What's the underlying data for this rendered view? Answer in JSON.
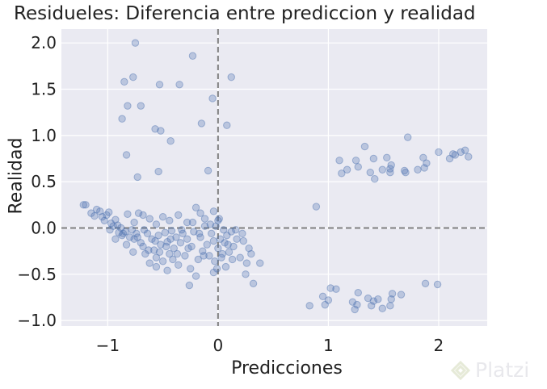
{
  "chart_data": {
    "type": "scatter",
    "title": "Residueles: Diferencia entre prediccion y realidad",
    "xlabel": "Predicciones",
    "ylabel": "Realidad",
    "xlim": [
      -1.42,
      2.44
    ],
    "ylim": [
      -1.06,
      2.15
    ],
    "x_ticks": [
      -1,
      0,
      1,
      2
    ],
    "x_tick_labels": [
      "−1",
      "0",
      "1",
      "2"
    ],
    "y_ticks": [
      -1.0,
      -0.5,
      0.0,
      0.5,
      1.0,
      1.5,
      2.0
    ],
    "y_tick_labels": [
      "−1.0",
      "−0.5",
      "0.0",
      "0.5",
      "1.0",
      "1.5",
      "2.0"
    ],
    "reference_lines": {
      "vertical_x": 0,
      "horizontal_y": 0,
      "style": "dashed"
    },
    "grid": true,
    "background": "#eaeaf2",
    "point_color": "#4c72b0",
    "point_alpha": 0.3,
    "points": [
      [
        -0.75,
        2.0
      ],
      [
        -0.23,
        1.86
      ],
      [
        -0.85,
        1.58
      ],
      [
        -0.77,
        1.63
      ],
      [
        -0.53,
        1.55
      ],
      [
        -0.35,
        1.55
      ],
      [
        0.12,
        1.63
      ],
      [
        -0.82,
        1.32
      ],
      [
        -0.7,
        1.32
      ],
      [
        -0.87,
        1.18
      ],
      [
        -0.57,
        1.07
      ],
      [
        -0.52,
        1.05
      ],
      [
        -0.15,
        1.13
      ],
      [
        0.08,
        1.11
      ],
      [
        -0.43,
        0.94
      ],
      [
        -0.83,
        0.79
      ],
      [
        -0.73,
        0.55
      ],
      [
        -0.54,
        0.61
      ],
      [
        -0.09,
        0.62
      ],
      [
        -0.05,
        1.4
      ],
      [
        0.89,
        0.23
      ],
      [
        1.1,
        0.73
      ],
      [
        1.17,
        0.63
      ],
      [
        1.12,
        0.59
      ],
      [
        1.25,
        0.73
      ],
      [
        1.27,
        0.66
      ],
      [
        1.33,
        0.88
      ],
      [
        1.38,
        0.6
      ],
      [
        1.41,
        0.75
      ],
      [
        1.42,
        0.53
      ],
      [
        1.49,
        0.63
      ],
      [
        1.53,
        0.76
      ],
      [
        1.56,
        0.6
      ],
      [
        1.56,
        0.64
      ],
      [
        1.57,
        0.68
      ],
      [
        1.69,
        0.62
      ],
      [
        1.72,
        0.98
      ],
      [
        1.7,
        0.6
      ],
      [
        1.81,
        0.63
      ],
      [
        1.86,
        0.76
      ],
      [
        1.87,
        0.65
      ],
      [
        1.89,
        0.7
      ],
      [
        2.0,
        0.82
      ],
      [
        2.1,
        0.75
      ],
      [
        2.13,
        0.8
      ],
      [
        2.15,
        0.79
      ],
      [
        2.2,
        0.82
      ],
      [
        2.24,
        0.84
      ],
      [
        2.27,
        0.77
      ],
      [
        0.83,
        -0.84
      ],
      [
        0.97,
        -0.83
      ],
      [
        1.0,
        -0.78
      ],
      [
        1.02,
        -0.65
      ],
      [
        1.07,
        -0.66
      ],
      [
        0.95,
        -0.74
      ],
      [
        1.22,
        -0.8
      ],
      [
        1.24,
        -0.88
      ],
      [
        1.26,
        -0.83
      ],
      [
        1.27,
        -0.7
      ],
      [
        1.36,
        -0.76
      ],
      [
        1.41,
        -0.79
      ],
      [
        1.39,
        -0.84
      ],
      [
        1.45,
        -0.77
      ],
      [
        1.49,
        -0.87
      ],
      [
        1.57,
        -0.77
      ],
      [
        1.56,
        -0.84
      ],
      [
        1.58,
        -0.71
      ],
      [
        1.66,
        -0.72
      ],
      [
        1.88,
        -0.6
      ],
      [
        1.99,
        -0.61
      ],
      [
        -1.22,
        0.25
      ],
      [
        -1.2,
        0.25
      ],
      [
        -1.15,
        0.16
      ],
      [
        -1.12,
        0.13
      ],
      [
        -1.1,
        0.2
      ],
      [
        -1.07,
        0.18
      ],
      [
        -1.05,
        0.12
      ],
      [
        -1.03,
        0.08
      ],
      [
        -1.01,
        0.14
      ],
      [
        -0.99,
        0.17
      ],
      [
        -0.97,
        0.05
      ],
      [
        -0.95,
        0.02
      ],
      [
        -0.93,
        0.09
      ],
      [
        -0.91,
        0.03
      ],
      [
        -0.9,
        -0.05
      ],
      [
        -0.88,
        0.0
      ],
      [
        -0.86,
        -0.06
      ],
      [
        -0.84,
        -0.04
      ],
      [
        -0.82,
        0.15
      ],
      [
        -0.8,
        -0.1
      ],
      [
        -0.78,
        -0.02
      ],
      [
        -0.76,
        -0.12
      ],
      [
        -0.74,
        -0.06
      ],
      [
        -0.72,
        0.16
      ],
      [
        -0.7,
        -0.16
      ],
      [
        -0.68,
        -0.2
      ],
      [
        -0.66,
        -0.28
      ],
      [
        -0.64,
        -0.06
      ],
      [
        -0.62,
        -0.38
      ],
      [
        -0.6,
        -0.12
      ],
      [
        -0.58,
        -0.24
      ],
      [
        -0.56,
        -0.32
      ],
      [
        -0.54,
        -0.08
      ],
      [
        -0.52,
        -0.18
      ],
      [
        -0.5,
        -0.36
      ],
      [
        -0.48,
        -0.05
      ],
      [
        -0.46,
        -0.15
      ],
      [
        -0.44,
        -0.28
      ],
      [
        -0.42,
        -0.03
      ],
      [
        -0.4,
        -0.22
      ],
      [
        -0.38,
        -0.1
      ],
      [
        -0.36,
        -0.4
      ],
      [
        -0.34,
        -0.16
      ],
      [
        -0.32,
        -0.06
      ],
      [
        -0.3,
        -0.3
      ],
      [
        -0.28,
        -0.12
      ],
      [
        -0.26,
        -0.62
      ],
      [
        -0.24,
        -0.2
      ],
      [
        -0.22,
        -0.04
      ],
      [
        -0.2,
        -0.52
      ],
      [
        -0.18,
        -0.34
      ],
      [
        -0.16,
        -0.1
      ],
      [
        -0.14,
        -0.25
      ],
      [
        -0.12,
        0.02
      ],
      [
        -0.1,
        -0.18
      ],
      [
        -0.08,
        -0.3
      ],
      [
        -0.06,
        -0.06
      ],
      [
        -0.04,
        -0.14
      ],
      [
        -0.02,
        0.02
      ],
      [
        -0.01,
        -0.44
      ],
      [
        0.0,
        -0.22
      ],
      [
        0.02,
        -0.12
      ],
      [
        0.03,
        -0.32
      ],
      [
        0.05,
        -0.02
      ],
      [
        0.06,
        -0.16
      ],
      [
        0.08,
        -0.08
      ],
      [
        0.1,
        -0.26
      ],
      [
        0.12,
        -0.04
      ],
      [
        0.14,
        -0.2
      ],
      [
        0.17,
        -0.12
      ],
      [
        0.2,
        -0.32
      ],
      [
        0.22,
        -0.06
      ],
      [
        0.25,
        -0.5
      ],
      [
        0.28,
        -0.22
      ],
      [
        0.3,
        -0.28
      ],
      [
        0.32,
        -0.6
      ],
      [
        0.38,
        -0.38
      ],
      [
        -0.98,
        -0.02
      ],
      [
        -0.93,
        -0.12
      ],
      [
        -0.87,
        -0.08
      ],
      [
        -0.83,
        -0.18
      ],
      [
        -0.77,
        -0.26
      ],
      [
        -0.73,
        -0.1
      ],
      [
        -0.67,
        -0.02
      ],
      [
        -0.63,
        -0.24
      ],
      [
        -0.57,
        -0.14
      ],
      [
        -0.53,
        -0.26
      ],
      [
        -0.47,
        -0.2
      ],
      [
        -0.43,
        -0.12
      ],
      [
        -0.37,
        -0.28
      ],
      [
        -0.33,
        -0.02
      ],
      [
        -0.27,
        -0.22
      ],
      [
        -0.23,
        0.06
      ],
      [
        -0.17,
        -0.06
      ],
      [
        -0.13,
        -0.3
      ],
      [
        -0.07,
        0.04
      ],
      [
        -0.03,
        -0.36
      ],
      [
        0.01,
        0.1
      ],
      [
        0.04,
        -0.28
      ],
      [
        0.09,
        -0.18
      ],
      [
        0.13,
        -0.34
      ],
      [
        0.16,
        -0.02
      ],
      [
        -0.62,
        0.1
      ],
      [
        -0.5,
        0.12
      ],
      [
        -0.44,
        0.08
      ],
      [
        -0.36,
        0.14
      ],
      [
        -0.28,
        0.06
      ],
      [
        -0.2,
        0.22
      ],
      [
        -0.16,
        0.16
      ],
      [
        -0.12,
        0.1
      ],
      [
        -0.04,
        0.18
      ],
      [
        0.0,
        0.08
      ],
      [
        -0.56,
        0.04
      ],
      [
        -0.68,
        0.14
      ],
      [
        -0.76,
        0.06
      ],
      [
        -0.04,
        -0.48
      ],
      [
        0.07,
        -0.42
      ],
      [
        -0.41,
        -0.34
      ],
      [
        -0.46,
        -0.46
      ],
      [
        -0.56,
        -0.42
      ],
      [
        -0.25,
        -0.44
      ],
      [
        0.23,
        -0.14
      ],
      [
        0.26,
        -0.38
      ]
    ]
  },
  "watermark": {
    "text": "Platzi"
  }
}
